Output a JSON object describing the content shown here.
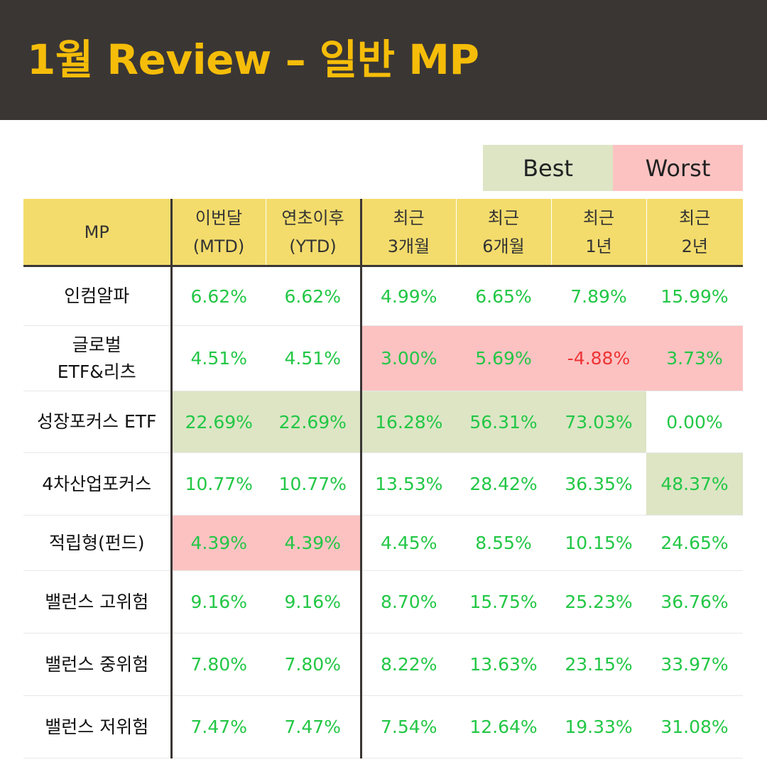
{
  "title": "1월 Review – 일반 MP",
  "legend": {
    "best_label": "Best",
    "worst_label": "Worst",
    "best_color": "#dde5c5",
    "worst_color": "#fcc2c2"
  },
  "colors": {
    "header_bg": "#3a3634",
    "title_color": "#f5bd09",
    "table_header_bg": "#f3dc6c",
    "positive_text": "#22c745",
    "negative_text": "#ee3434"
  },
  "table": {
    "headers": [
      [
        "MP"
      ],
      [
        "이번달",
        "(MTD)"
      ],
      [
        "연초이후",
        "(YTD)"
      ],
      [
        "최근",
        "3개월"
      ],
      [
        "최근",
        "6개월"
      ],
      [
        "최근",
        "1년"
      ],
      [
        "최근",
        "2년"
      ]
    ],
    "rows": [
      {
        "name": [
          "인컴알파"
        ],
        "values": [
          "6.62%",
          "6.62%",
          "4.99%",
          "6.65%",
          "7.89%",
          "15.99%"
        ],
        "marks": [
          "",
          "",
          "",
          "",
          "",
          ""
        ]
      },
      {
        "name": [
          "글로벌",
          "ETF&리츠"
        ],
        "values": [
          "4.51%",
          "4.51%",
          "3.00%",
          "5.69%",
          "-4.88%",
          "3.73%"
        ],
        "marks": [
          "",
          "",
          "worst",
          "worst",
          "worst",
          "worst"
        ]
      },
      {
        "name": [
          "성장포커스 ETF"
        ],
        "values": [
          "22.69%",
          "22.69%",
          "16.28%",
          "56.31%",
          "73.03%",
          "0.00%"
        ],
        "marks": [
          "best",
          "best",
          "best",
          "best",
          "best",
          ""
        ]
      },
      {
        "name": [
          "4차산업포커스"
        ],
        "values": [
          "10.77%",
          "10.77%",
          "13.53%",
          "28.42%",
          "36.35%",
          "48.37%"
        ],
        "marks": [
          "",
          "",
          "",
          "",
          "",
          "best"
        ]
      },
      {
        "name": [
          "적립형(펀드)"
        ],
        "values": [
          "4.39%",
          "4.39%",
          "4.45%",
          "8.55%",
          "10.15%",
          "24.65%"
        ],
        "marks": [
          "worst",
          "worst",
          "",
          "",
          "",
          ""
        ]
      },
      {
        "name": [
          "밸런스 고위험"
        ],
        "values": [
          "9.16%",
          "9.16%",
          "8.70%",
          "15.75%",
          "25.23%",
          "36.76%"
        ],
        "marks": [
          "",
          "",
          "",
          "",
          "",
          ""
        ]
      },
      {
        "name": [
          "밸런스 중위험"
        ],
        "values": [
          "7.80%",
          "7.80%",
          "8.22%",
          "13.63%",
          "23.15%",
          "33.97%"
        ],
        "marks": [
          "",
          "",
          "",
          "",
          "",
          ""
        ]
      },
      {
        "name": [
          "밸런스 저위험"
        ],
        "values": [
          "7.47%",
          "7.47%",
          "7.54%",
          "12.64%",
          "19.33%",
          "31.08%"
        ],
        "marks": [
          "",
          "",
          "",
          "",
          "",
          ""
        ]
      }
    ]
  }
}
